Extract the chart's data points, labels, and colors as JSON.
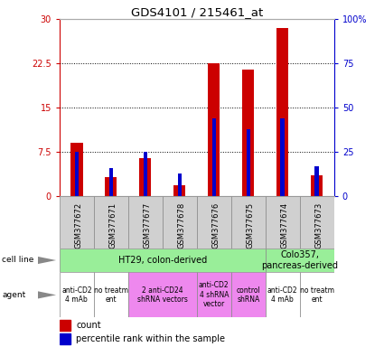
{
  "title": "GDS4101 / 215461_at",
  "samples": [
    "GSM377672",
    "GSM377671",
    "GSM377677",
    "GSM377678",
    "GSM377676",
    "GSM377675",
    "GSM377674",
    "GSM377673"
  ],
  "count_values": [
    9.0,
    3.2,
    6.5,
    1.8,
    22.5,
    21.5,
    28.5,
    3.5
  ],
  "percentile_values": [
    25,
    16,
    25,
    13,
    44,
    38,
    44,
    17
  ],
  "ylim_left": [
    0,
    30
  ],
  "ylim_right": [
    0,
    100
  ],
  "yticks_left": [
    0,
    7.5,
    15,
    22.5,
    30
  ],
  "ytick_labels_left": [
    "0",
    "7.5",
    "15",
    "22.5",
    "30"
  ],
  "yticks_right": [
    0,
    25,
    50,
    75,
    100
  ],
  "ytick_labels_right": [
    "0",
    "25",
    "50",
    "75",
    "100%"
  ],
  "bar_color": "#cc0000",
  "percentile_color": "#0000cc",
  "cell_line_labels": [
    {
      "label": "HT29, colon-derived",
      "span": [
        0,
        6
      ],
      "color": "#99ee99"
    },
    {
      "label": "Colo357,\npancreas-derived",
      "span": [
        6,
        8
      ],
      "color": "#99ee99"
    }
  ],
  "agent_labels": [
    {
      "label": "anti-CD2\n4 mAb",
      "span": [
        0,
        1
      ],
      "color": "#ffffff"
    },
    {
      "label": "no treatm\nent",
      "span": [
        1,
        2
      ],
      "color": "#ffffff"
    },
    {
      "label": "2 anti-CD24\nshRNA vectors",
      "span": [
        2,
        4
      ],
      "color": "#ee88ee"
    },
    {
      "label": "anti-CD2\n4 shRNA\nvector",
      "span": [
        4,
        5
      ],
      "color": "#ee88ee"
    },
    {
      "label": "control\nshRNA",
      "span": [
        5,
        6
      ],
      "color": "#ee88ee"
    },
    {
      "label": "anti-CD2\n4 mAb",
      "span": [
        6,
        7
      ],
      "color": "#ffffff"
    },
    {
      "label": "no treatm\nent",
      "span": [
        7,
        8
      ],
      "color": "#ffffff"
    }
  ],
  "sample_bg_color": "#d0d0d0",
  "left_axis_color": "#cc0000",
  "right_axis_color": "#0000cc",
  "bar_width": 0.35,
  "pct_bar_width": 0.12
}
